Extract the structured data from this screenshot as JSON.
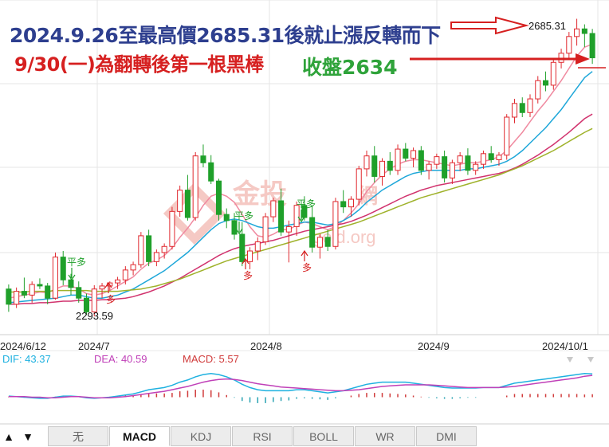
{
  "annotations": {
    "line1": "2024.9.26至最高價2685.31後就止漲反轉而下",
    "line2": "9/30(一)為翻轉後第一根黑棒",
    "close_label": "收盤2634",
    "peak_label": "2685.31",
    "low_label": "2293.59",
    "signal_flat": "平多",
    "signal_long": "多"
  },
  "watermark": {
    "name": "金投",
    "suffix": "網",
    "domain": "gold.org",
    "color": "#f5c9c4"
  },
  "indicators": {
    "dif": "DIF: 43.37",
    "dea": "DEA: 40.59",
    "macd": "MACD: 5.57"
  },
  "tabs": {
    "up_icon": "▲",
    "down_icon": "▼",
    "items": [
      "无",
      "MACD",
      "KDJ",
      "RSI",
      "BOLL",
      "WR",
      "DMI"
    ],
    "active": "MACD"
  },
  "colors": {
    "up": "#e0282e",
    "down": "#1fa02a",
    "ma_pink": "#f08aa0",
    "ma_cyan": "#1ea7d9",
    "ma_magenta": "#d1336e",
    "ma_olive": "#9fb22b",
    "dif": "#1eb1e0",
    "dea": "#c040b8",
    "grid": "#e6e6e6"
  },
  "chart_data": {
    "type": "candlestick",
    "x_tick_labels": [
      "2024/6/12",
      "2024/7",
      "2024/8",
      "2024/9",
      "2024/10/1"
    ],
    "y_range": [
      2270,
      2710
    ],
    "peak": 2685.31,
    "low": 2293.59,
    "close": 2634,
    "candles": [
      [
        2330,
        2336,
        2300,
        2310
      ],
      [
        2310,
        2332,
        2305,
        2327
      ],
      [
        2327,
        2345,
        2318,
        2322
      ],
      [
        2322,
        2340,
        2312,
        2336
      ],
      [
        2336,
        2344,
        2330,
        2334
      ],
      [
        2334,
        2338,
        2310,
        2318
      ],
      [
        2318,
        2378,
        2316,
        2372
      ],
      [
        2372,
        2380,
        2335,
        2342
      ],
      [
        2342,
        2350,
        2322,
        2332
      ],
      [
        2332,
        2340,
        2312,
        2318
      ],
      [
        2318,
        2324,
        2296,
        2300
      ],
      [
        2300,
        2335,
        2294,
        2330
      ],
      [
        2330,
        2338,
        2318,
        2334
      ],
      [
        2334,
        2340,
        2328,
        2338
      ],
      [
        2338,
        2346,
        2330,
        2342
      ],
      [
        2342,
        2360,
        2336,
        2355
      ],
      [
        2355,
        2366,
        2348,
        2362
      ],
      [
        2362,
        2405,
        2358,
        2400
      ],
      [
        2400,
        2408,
        2360,
        2366
      ],
      [
        2366,
        2382,
        2360,
        2378
      ],
      [
        2378,
        2390,
        2370,
        2386
      ],
      [
        2386,
        2438,
        2382,
        2432
      ],
      [
        2432,
        2466,
        2425,
        2460
      ],
      [
        2460,
        2480,
        2420,
        2424
      ],
      [
        2424,
        2510,
        2420,
        2505
      ],
      [
        2505,
        2520,
        2490,
        2496
      ],
      [
        2496,
        2506,
        2468,
        2472
      ],
      [
        2472,
        2475,
        2420,
        2428
      ],
      [
        2428,
        2436,
        2410,
        2420
      ],
      [
        2420,
        2430,
        2395,
        2402
      ],
      [
        2402,
        2418,
        2360,
        2366
      ],
      [
        2366,
        2385,
        2356,
        2380
      ],
      [
        2380,
        2398,
        2368,
        2392
      ],
      [
        2392,
        2430,
        2388,
        2425
      ],
      [
        2425,
        2450,
        2418,
        2446
      ],
      [
        2446,
        2462,
        2400,
        2405
      ],
      [
        2405,
        2420,
        2365,
        2412
      ],
      [
        2412,
        2445,
        2400,
        2440
      ],
      [
        2440,
        2452,
        2420,
        2424
      ],
      [
        2424,
        2440,
        2378,
        2385
      ],
      [
        2385,
        2402,
        2370,
        2398
      ],
      [
        2398,
        2408,
        2380,
        2386
      ],
      [
        2386,
        2450,
        2382,
        2445
      ],
      [
        2445,
        2460,
        2430,
        2438
      ],
      [
        2438,
        2452,
        2425,
        2448
      ],
      [
        2448,
        2492,
        2440,
        2488
      ],
      [
        2488,
        2512,
        2478,
        2505
      ],
      [
        2505,
        2518,
        2470,
        2478
      ],
      [
        2478,
        2502,
        2466,
        2498
      ],
      [
        2498,
        2510,
        2480,
        2486
      ],
      [
        2486,
        2520,
        2480,
        2514
      ],
      [
        2514,
        2522,
        2498,
        2502
      ],
      [
        2502,
        2516,
        2490,
        2512
      ],
      [
        2512,
        2518,
        2480,
        2486
      ],
      [
        2486,
        2498,
        2474,
        2494
      ],
      [
        2494,
        2508,
        2488,
        2504
      ],
      [
        2504,
        2512,
        2470,
        2476
      ],
      [
        2476,
        2500,
        2468,
        2496
      ],
      [
        2496,
        2510,
        2485,
        2505
      ],
      [
        2505,
        2515,
        2480,
        2486
      ],
      [
        2486,
        2498,
        2480,
        2494
      ],
      [
        2494,
        2512,
        2488,
        2508
      ],
      [
        2508,
        2518,
        2496,
        2500
      ],
      [
        2500,
        2510,
        2492,
        2506
      ],
      [
        2506,
        2560,
        2500,
        2556
      ],
      [
        2556,
        2580,
        2548,
        2574
      ],
      [
        2574,
        2582,
        2556,
        2562
      ],
      [
        2562,
        2586,
        2556,
        2580
      ],
      [
        2580,
        2610,
        2574,
        2604
      ],
      [
        2604,
        2616,
        2590,
        2598
      ],
      [
        2598,
        2632,
        2592,
        2628
      ],
      [
        2628,
        2646,
        2620,
        2640
      ],
      [
        2640,
        2668,
        2634,
        2662
      ],
      [
        2662,
        2685.31,
        2650,
        2672
      ],
      [
        2672,
        2678,
        2648,
        2666
      ],
      [
        2666,
        2672,
        2626,
        2634
      ]
    ],
    "ma_series": {
      "pink": [
        2318,
        2320,
        2322,
        2324,
        2326,
        2325,
        2330,
        2334,
        2334,
        2330,
        2324,
        2322,
        2324,
        2328,
        2334,
        2340,
        2346,
        2356,
        2364,
        2368,
        2374,
        2384,
        2398,
        2410,
        2424,
        2440,
        2452,
        2456,
        2452,
        2444,
        2428,
        2412,
        2400,
        2398,
        2402,
        2408,
        2408,
        2414,
        2418,
        2416,
        2412,
        2408,
        2412,
        2420,
        2430,
        2442,
        2458,
        2470,
        2480,
        2488,
        2494,
        2498,
        2500,
        2500,
        2498,
        2496,
        2494,
        2492,
        2494,
        2496,
        2496,
        2498,
        2500,
        2504,
        2512,
        2524,
        2536,
        2550,
        2564,
        2576,
        2590,
        2604,
        2620,
        2636,
        2648,
        2652
      ],
      "cyan": [
        2312,
        2313,
        2314,
        2315,
        2316,
        2317,
        2318,
        2320,
        2322,
        2322,
        2320,
        2318,
        2318,
        2320,
        2322,
        2326,
        2330,
        2336,
        2342,
        2348,
        2354,
        2362,
        2370,
        2378,
        2388,
        2398,
        2408,
        2416,
        2420,
        2422,
        2420,
        2416,
        2412,
        2410,
        2410,
        2412,
        2414,
        2416,
        2418,
        2418,
        2416,
        2414,
        2416,
        2420,
        2426,
        2434,
        2444,
        2452,
        2460,
        2466,
        2472,
        2478,
        2482,
        2484,
        2486,
        2486,
        2486,
        2486,
        2486,
        2488,
        2488,
        2490,
        2492,
        2494,
        2498,
        2504,
        2512,
        2522,
        2532,
        2542,
        2554,
        2566,
        2580,
        2594,
        2608,
        2616
      ],
      "magenta": [
        2310,
        2310,
        2311,
        2311,
        2312,
        2312,
        2313,
        2314,
        2314,
        2315,
        2315,
        2315,
        2316,
        2316,
        2317,
        2318,
        2320,
        2323,
        2326,
        2330,
        2334,
        2339,
        2344,
        2350,
        2356,
        2362,
        2368,
        2374,
        2379,
        2383,
        2386,
        2388,
        2390,
        2392,
        2394,
        2397,
        2400,
        2403,
        2406,
        2408,
        2410,
        2412,
        2414,
        2416,
        2419,
        2423,
        2427,
        2432,
        2437,
        2442,
        2447,
        2452,
        2456,
        2460,
        2463,
        2466,
        2468,
        2470,
        2472,
        2474,
        2476,
        2478,
        2480,
        2482,
        2485,
        2489,
        2494,
        2500,
        2506,
        2513,
        2520,
        2528,
        2536,
        2545,
        2554,
        2560
      ],
      "olive": [
        2326,
        2326,
        2326,
        2327,
        2327,
        2327,
        2328,
        2328,
        2328,
        2328,
        2328,
        2327,
        2327,
        2327,
        2327,
        2328,
        2329,
        2330,
        2332,
        2334,
        2337,
        2340,
        2343,
        2347,
        2351,
        2355,
        2359,
        2363,
        2367,
        2370,
        2373,
        2376,
        2379,
        2382,
        2385,
        2388,
        2391,
        2394,
        2397,
        2400,
        2403,
        2406,
        2409,
        2412,
        2415,
        2418,
        2422,
        2426,
        2430,
        2434,
        2438,
        2442,
        2446,
        2450,
        2453,
        2456,
        2459,
        2462,
        2465,
        2468,
        2471,
        2474,
        2477,
        2480,
        2484,
        2488,
        2492,
        2497,
        2502,
        2507,
        2512,
        2518,
        2524,
        2530,
        2536,
        2541
      ]
    },
    "macd": {
      "dif": 43.37,
      "dea": 40.59,
      "macd": 5.57,
      "y_range": [
        -20,
        60
      ],
      "dif_series": [
        2,
        1,
        0,
        -1,
        -2,
        -2,
        0,
        2,
        2,
        1,
        -1,
        -2,
        -1,
        0,
        2,
        4,
        6,
        10,
        14,
        16,
        18,
        22,
        28,
        32,
        38,
        42,
        44,
        42,
        38,
        32,
        24,
        18,
        14,
        12,
        12,
        12,
        12,
        14,
        14,
        12,
        10,
        8,
        10,
        12,
        16,
        20,
        24,
        26,
        28,
        28,
        28,
        28,
        26,
        24,
        22,
        20,
        18,
        17,
        17,
        17,
        17,
        18,
        18,
        18,
        22,
        26,
        28,
        30,
        32,
        34,
        36,
        38,
        40,
        42,
        44,
        43.37
      ],
      "dea_series": [
        1,
        1,
        1,
        0,
        0,
        -1,
        -1,
        0,
        1,
        1,
        0,
        -1,
        -1,
        -1,
        0,
        1,
        3,
        5,
        7,
        9,
        11,
        14,
        17,
        20,
        24,
        28,
        31,
        33,
        34,
        33,
        31,
        28,
        25,
        23,
        21,
        19,
        18,
        17,
        16,
        15,
        14,
        13,
        12,
        12,
        13,
        14,
        16,
        18,
        20,
        21,
        22,
        23,
        23,
        23,
        23,
        22,
        21,
        20,
        19,
        18,
        18,
        18,
        18,
        18,
        19,
        20,
        22,
        24,
        26,
        28,
        30,
        32,
        34,
        36,
        39,
        40.59
      ],
      "hist": [
        1,
        0,
        -1,
        -1,
        -2,
        -1,
        1,
        2,
        1,
        0,
        -1,
        -1,
        0,
        1,
        2,
        3,
        3,
        5,
        7,
        7,
        7,
        8,
        11,
        12,
        14,
        14,
        13,
        9,
        4,
        -1,
        -7,
        -10,
        -11,
        -11,
        -9,
        -7,
        -6,
        -3,
        -2,
        -3,
        -4,
        -5,
        -2,
        0,
        3,
        6,
        8,
        8,
        8,
        7,
        6,
        5,
        3,
        1,
        -1,
        -2,
        -3,
        -3,
        -2,
        -1,
        -1,
        0,
        0,
        0,
        3,
        6,
        6,
        6,
        6,
        6,
        6,
        6,
        6,
        6,
        5,
        5.57
      ]
    }
  }
}
